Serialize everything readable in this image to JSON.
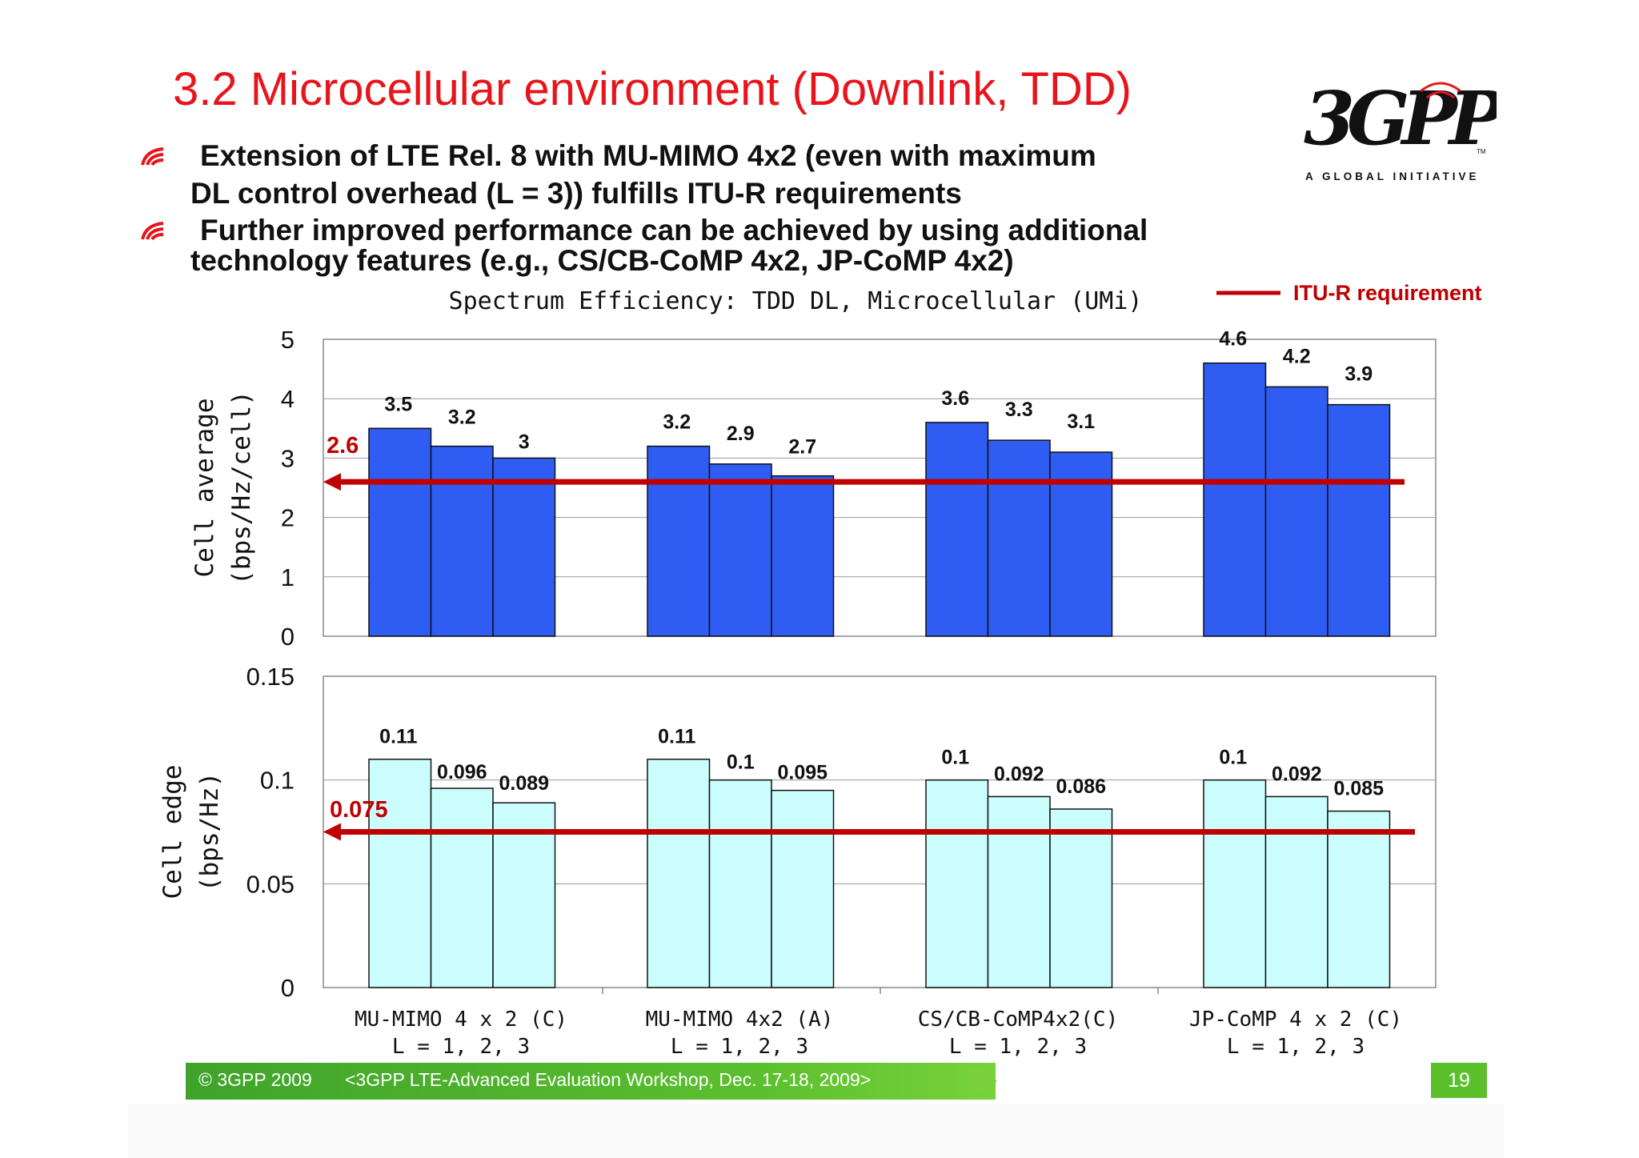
{
  "slide_title": "3.2 Microcellular environment (Downlink, TDD)",
  "bullets": [
    {
      "line1": "Extension of LTE Rel. 8 with MU-MIMO 4x2 (even with maximum",
      "line2": "DL control overhead  (L = 3)) fulfills ITU-R requirements"
    },
    {
      "line1": "Further improved performance can be achieved by using additional",
      "line2": "technology features  (e.g., CS/CB-CoMP 4x2, JP-CoMP 4x2)"
    }
  ],
  "logo": {
    "text": "3GPP",
    "tagline": "A GLOBAL INITIATIVE",
    "tm": "TM"
  },
  "colors": {
    "title": "#e8141b",
    "bar_top": "#2f5cf2",
    "bar_bottom": "#ccfdfd",
    "requirement": "#c00000",
    "footer": "#4fb22c"
  },
  "chart_data": [
    {
      "type": "bar",
      "title": "Spectrum Efficiency: TDD DL, Microcellular (UMi)",
      "ylabel": "Cell average (bps/Hz/cell)",
      "ylim": [
        0,
        5
      ],
      "yticks": [
        "0",
        "1",
        "2",
        "3",
        "4",
        "5"
      ],
      "categories": [
        "MU-MIMO 4 x 2 (C) L = 1, 2, 3",
        "MU-MIMO 4x2 (A) L = 1, 2, 3",
        "CS/CB-CoMP4x2(C) L = 1, 2, 3",
        "JP-CoMP 4 x 2 (C) L = 1, 2, 3"
      ],
      "groups": [
        {
          "values": [
            3.5,
            3.2,
            3.0
          ],
          "labels": [
            "3.5",
            "3.2",
            "3"
          ]
        },
        {
          "values": [
            3.2,
            2.9,
            2.7
          ],
          "labels": [
            "3.2",
            "2.9",
            "2.7"
          ]
        },
        {
          "values": [
            3.6,
            3.3,
            3.1
          ],
          "labels": [
            "3.6",
            "3.3",
            "3.1"
          ]
        },
        {
          "values": [
            4.6,
            4.2,
            3.9
          ],
          "labels": [
            "4.6",
            "4.2",
            "3.9"
          ]
        }
      ],
      "requirement": {
        "value": 2.6,
        "label": "2.6",
        "legend": "ITU-R requirement"
      },
      "grid": true
    },
    {
      "type": "bar",
      "ylabel": "Cell edge (bps/Hz)",
      "ylim": [
        0,
        0.15
      ],
      "yticks": [
        "0",
        "0.05",
        "0.1",
        "0.15"
      ],
      "categories": [
        "MU-MIMO 4 x 2 (C) L = 1, 2, 3",
        "MU-MIMO 4x2 (A) L = 1, 2, 3",
        "CS/CB-CoMP4x2(C) L = 1, 2, 3",
        "JP-CoMP 4 x 2 (C) L = 1, 2, 3"
      ],
      "groups": [
        {
          "values": [
            0.11,
            0.096,
            0.089
          ],
          "labels": [
            "0.11",
            "0.096",
            "0.089"
          ]
        },
        {
          "values": [
            0.11,
            0.1,
            0.095
          ],
          "labels": [
            "0.11",
            "0.1",
            "0.095"
          ]
        },
        {
          "values": [
            0.1,
            0.092,
            0.086
          ],
          "labels": [
            "0.1",
            "0.092",
            "0.086"
          ]
        },
        {
          "values": [
            0.1,
            0.092,
            0.085
          ],
          "labels": [
            "0.1",
            "0.092",
            "0.085"
          ]
        }
      ],
      "requirement": {
        "value": 0.075,
        "label": "0.075"
      },
      "grid": true
    }
  ],
  "xaxis": {
    "line1": [
      "MU-MIMO 4 x 2 (C)",
      "MU-MIMO 4x2 (A)",
      "CS/CB-CoMP4x2(C)",
      "JP-CoMP 4 x 2 (C)"
    ],
    "line2": [
      "L = 1, 2, 3",
      "L = 1, 2, 3",
      "L = 1, 2, 3",
      "L = 1, 2, 3"
    ]
  },
  "footer": {
    "copyright": "© 3GPP 2009",
    "event": "<3GPP LTE-Advanced Evaluation Workshop, Dec. 17-18, 2009>",
    "page": "19"
  }
}
